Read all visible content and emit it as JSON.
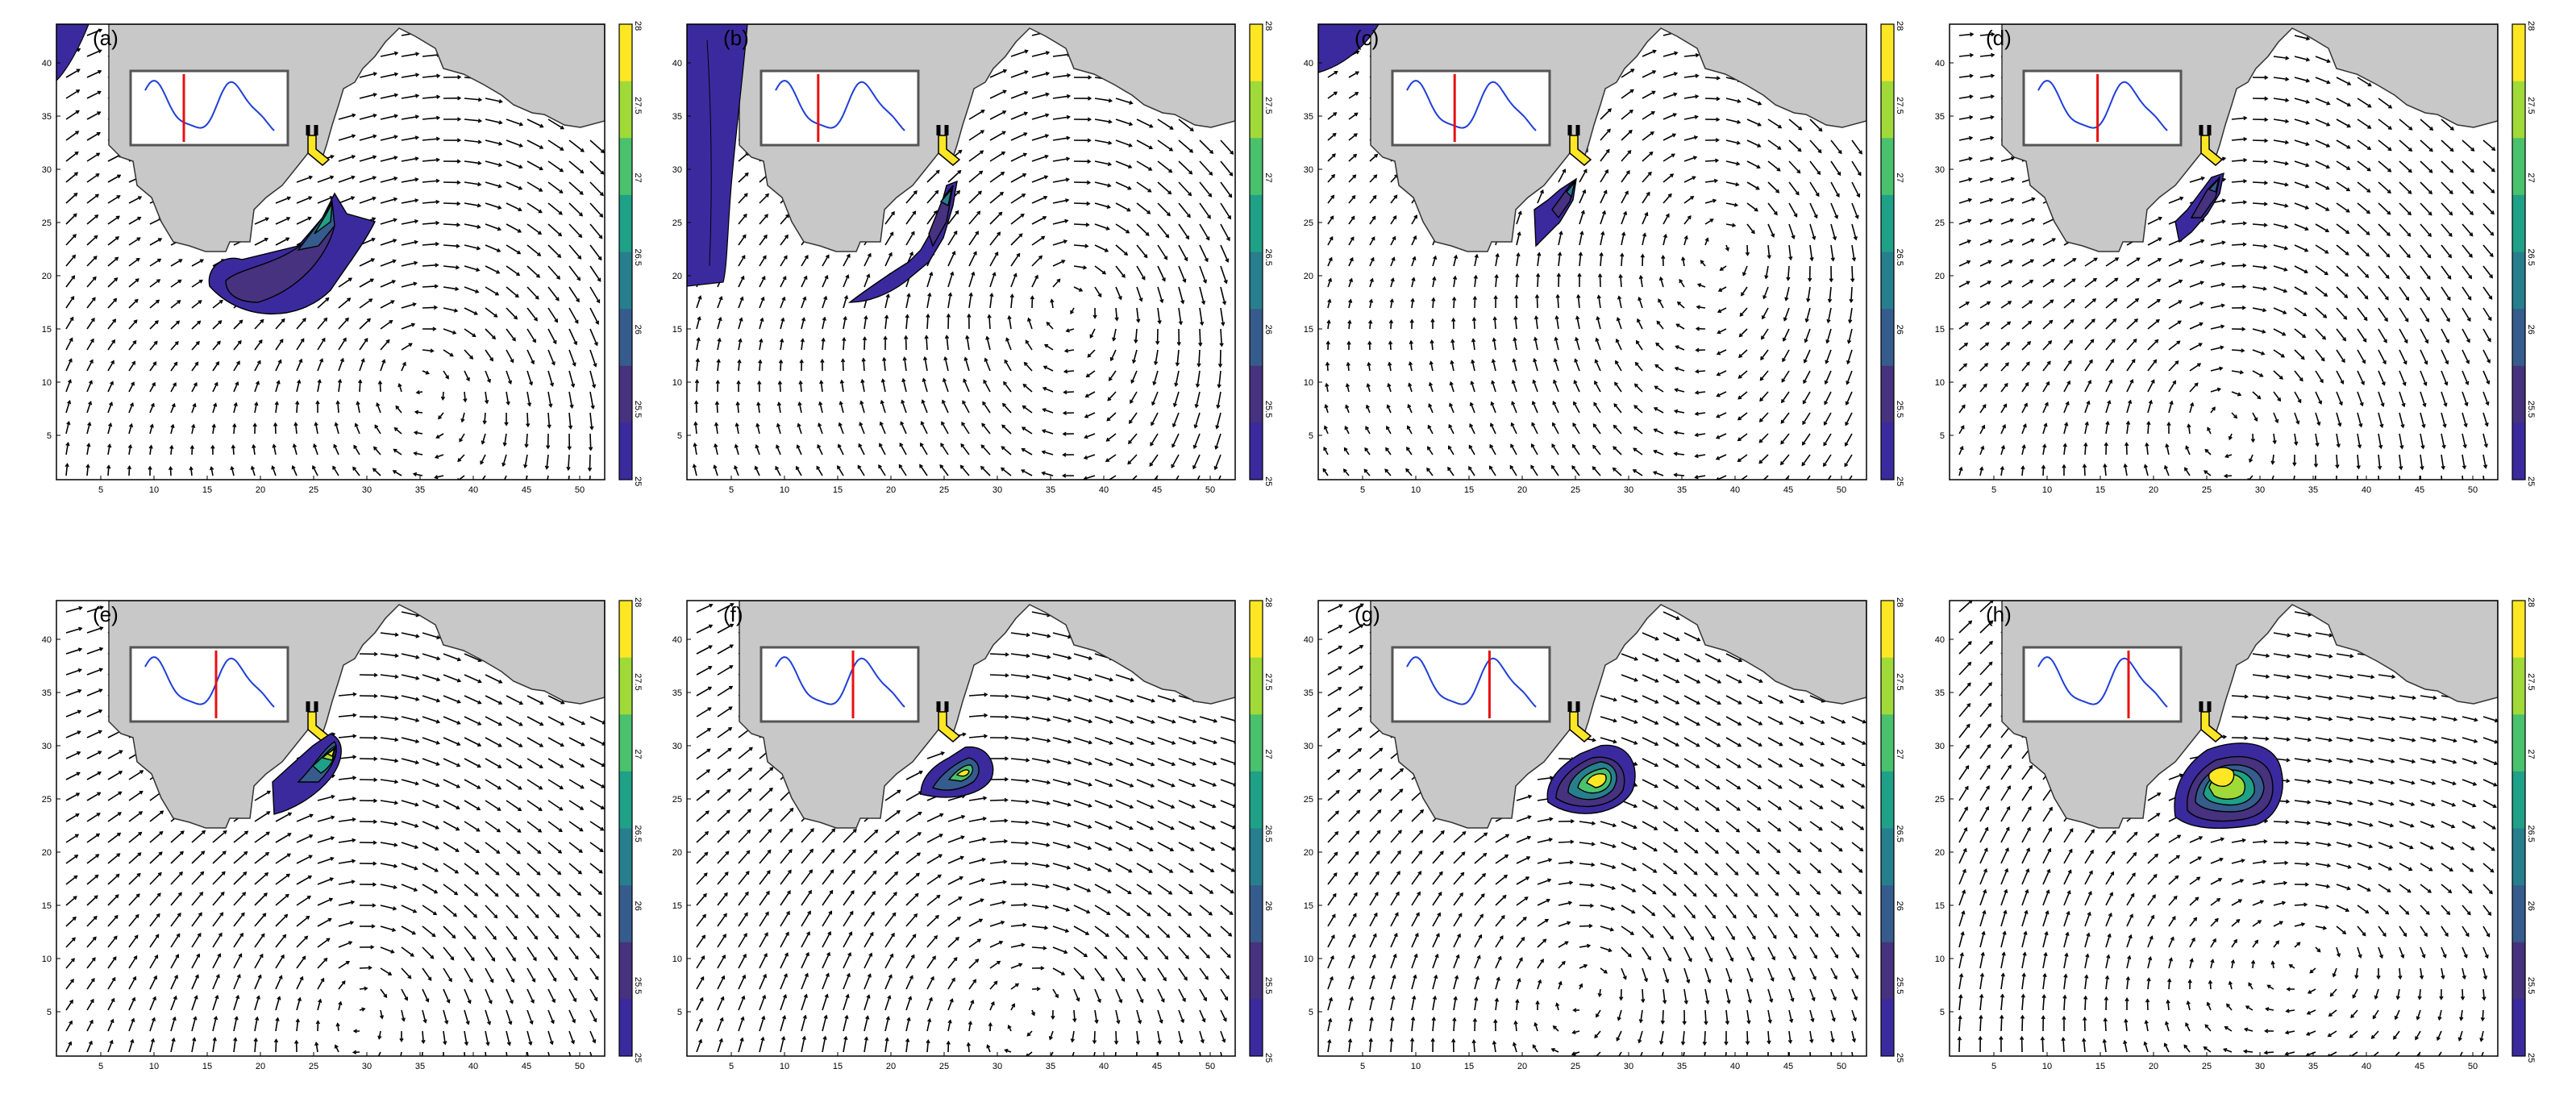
{
  "figure": {
    "panels": [
      {
        "label": "(a)",
        "marker": 0.3,
        "plume": "a"
      },
      {
        "label": "(b)",
        "marker": 0.33,
        "plume": "b"
      },
      {
        "label": "(c)",
        "marker": 0.37,
        "plume": "c"
      },
      {
        "label": "(d)",
        "marker": 0.46,
        "plume": "d"
      },
      {
        "label": "(e)",
        "marker": 0.55,
        "plume": "e"
      },
      {
        "label": "(f)",
        "marker": 0.6,
        "plume": "f"
      },
      {
        "label": "(g)",
        "marker": 0.64,
        "plume": "g"
      },
      {
        "label": "(h)",
        "marker": 0.7,
        "plume": "h"
      }
    ],
    "x_ticks": [
      "5",
      "10",
      "15",
      "20",
      "25",
      "30",
      "35",
      "40",
      "45",
      "50"
    ],
    "y_ticks": [
      "5",
      "10",
      "15",
      "20",
      "25",
      "30",
      "35",
      "40"
    ],
    "colorbar_ticks": [
      "28",
      "27.5",
      "27",
      "26.5",
      "26",
      "25.5",
      "25"
    ],
    "colors": {
      "land": "#c8c8c8",
      "arrow": "#000000",
      "inset_line": "#1f3fd8",
      "inset_marker": "#e81010",
      "colormap": [
        "#fde725",
        "#a0da39",
        "#4ac16d",
        "#1fa187",
        "#277f8e",
        "#365c8d",
        "#46327e",
        "#3b2a9e"
      ]
    }
  }
}
